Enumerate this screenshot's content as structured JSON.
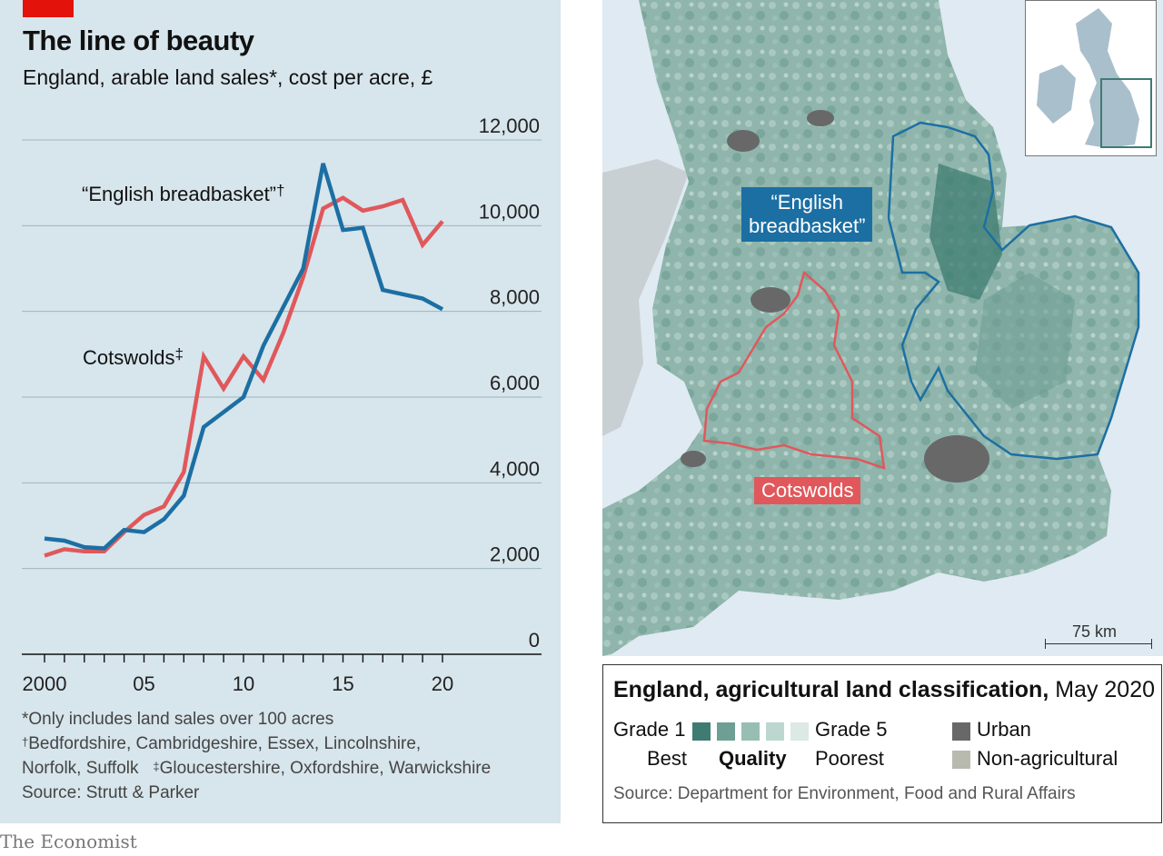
{
  "title": "The line of beauty",
  "subtitle": "England, arable land sales*, cost per acre, £",
  "chart_data": {
    "type": "line",
    "title": "The line of beauty",
    "subtitle": "England, arable land sales*, cost per acre, £",
    "x": [
      2000,
      2001,
      2002,
      2003,
      2004,
      2005,
      2006,
      2007,
      2008,
      2009,
      2010,
      2011,
      2012,
      2013,
      2014,
      2015,
      2016,
      2017,
      2018,
      2019,
      2020
    ],
    "series": [
      {
        "name": "“English breadbasket”†",
        "color": "#1c6fa3",
        "values": [
          2700,
          2650,
          2500,
          2470,
          2900,
          2850,
          3150,
          3700,
          5300,
          5650,
          6000,
          7200,
          8100,
          9000,
          11450,
          9900,
          9950,
          8500,
          8400,
          8300,
          8050
        ]
      },
      {
        "name": "Cotswolds‡",
        "color": "#e0585b",
        "values": [
          2300,
          2450,
          2400,
          2400,
          2850,
          3250,
          3450,
          4250,
          6950,
          6200,
          6950,
          6400,
          7500,
          8800,
          10400,
          10650,
          10350,
          10450,
          10600,
          9550,
          10100
        ]
      }
    ],
    "ylim": [
      0,
      12000
    ],
    "yticks": [
      0,
      2000,
      4000,
      6000,
      8000,
      10000,
      12000
    ],
    "ytick_labels": [
      "0",
      "2,000",
      "4,000",
      "6,000",
      "8,000",
      "10,000",
      "12,000"
    ],
    "xtick_labels": [
      "2000",
      "05",
      "10",
      "15",
      "20"
    ],
    "xtick_values": [
      2000,
      2005,
      2010,
      2015,
      2020
    ],
    "annotations": [
      {
        "text": "“English breadbasket”",
        "mark": "†"
      },
      {
        "text": "Cotswolds",
        "mark": "‡"
      }
    ],
    "grid": true
  },
  "notes": {
    "n1": "*Only includes land sales over 100 acres",
    "n2_mark": "†",
    "n2": "Bedfordshire, Cambridgeshire, Essex, Lincolnshire,",
    "n3a": "Norfolk, Suffolk",
    "n3_mark": "‡",
    "n3b": "Gloucestershire, Oxfordshire, Warwickshire",
    "source": "Source: Strutt & Parker"
  },
  "brand": "The Economist",
  "map": {
    "label_breadbasket_1": "“English",
    "label_breadbasket_2": "breadbasket”",
    "label_cotswolds": "Cotswolds",
    "scale": "75 km",
    "colors": {
      "breadbasket": "#1c6fa3",
      "cotswolds": "#e0585b",
      "sea": "#dfeaf2",
      "land": "#8fb5ac"
    }
  },
  "legend": {
    "title_bold": "England, agricultural land classification,",
    "title_date": " May 2020",
    "grade1": "Grade 1",
    "grade5": "Grade 5",
    "best": "Best",
    "quality": "Quality",
    "poorest": "Poorest",
    "urban": "Urban",
    "nonag": "Non-agricultural",
    "grade_colors": [
      "#3e7c72",
      "#6e9f95",
      "#98bdb3",
      "#bcd7cf",
      "#dce9e4"
    ],
    "urban_color": "#686868",
    "nonag_color": "#b8bab0",
    "source": "Source: Department for Environment, Food and Rural Affairs"
  }
}
